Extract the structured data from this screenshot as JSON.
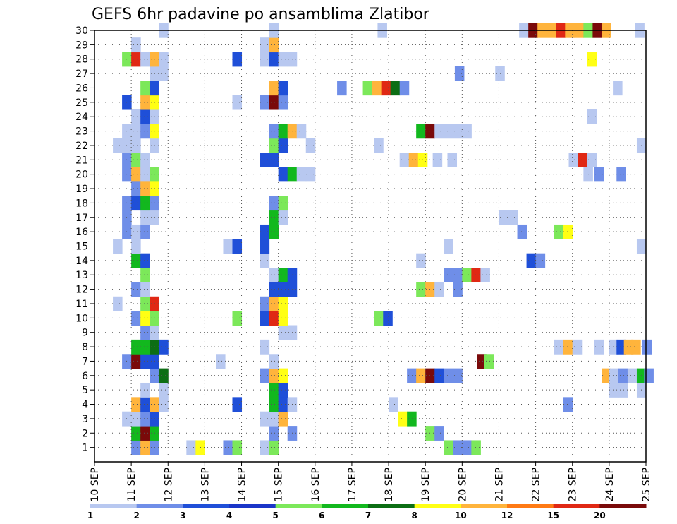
{
  "chart_data": {
    "type": "heatmap",
    "title": "GEFS 6hr padavine po ansamblima Zlatibor",
    "x_ticks": [
      "10 SEP",
      "11 SEP",
      "12 SEP",
      "13 SEP",
      "14 SEP",
      "15 SEP",
      "16 SEP",
      "17 SEP",
      "18 SEP",
      "19 SEP",
      "20 SEP",
      "21 SEP",
      "22 SEP",
      "23 SEP",
      "24 SEP",
      "25 SEP"
    ],
    "x_range_days": [
      10,
      25
    ],
    "y_ticks": [
      "1",
      "2",
      "3",
      "4",
      "5",
      "6",
      "7",
      "8",
      "9",
      "10",
      "11",
      "12",
      "13",
      "14",
      "15",
      "16",
      "17",
      "18",
      "19",
      "20",
      "21",
      "22",
      "23",
      "24",
      "25",
      "26",
      "27",
      "28",
      "29",
      "30"
    ],
    "y_range": [
      0,
      30
    ],
    "grid": true,
    "colorbar": {
      "labels": [
        "1",
        "2",
        "3",
        "4",
        "5",
        "6",
        "7",
        "8",
        "10",
        "12",
        "15",
        "20"
      ],
      "colors": [
        "#b8c8f0",
        "#6f8ee8",
        "#1f4fd8",
        "#1a35c8",
        "#7ce85a",
        "#12b81e",
        "#0c6e14",
        "#ffff14",
        "#ffb43c",
        "#ff7a14",
        "#e02814",
        "#7a0a0a"
      ],
      "units_note": ""
    },
    "cells": [
      [
        1,
        11.0,
        2
      ],
      [
        1,
        11.25,
        10
      ],
      [
        1,
        11.5,
        2
      ],
      [
        1,
        12.5,
        1
      ],
      [
        1,
        12.75,
        8
      ],
      [
        1,
        13.5,
        2
      ],
      [
        1,
        13.75,
        5
      ],
      [
        1,
        14.5,
        1
      ],
      [
        1,
        14.75,
        5
      ],
      [
        1,
        19.5,
        5
      ],
      [
        1,
        19.75,
        2
      ],
      [
        1,
        19.0,
        0
      ],
      [
        1,
        20.0,
        2
      ],
      [
        1,
        20.25,
        5
      ],
      [
        2,
        11.0,
        6
      ],
      [
        2,
        11.25,
        20
      ],
      [
        2,
        11.5,
        6
      ],
      [
        2,
        14.75,
        2
      ],
      [
        2,
        15.25,
        2
      ],
      [
        2,
        19.0,
        5
      ],
      [
        2,
        19.25,
        2
      ],
      [
        3,
        10.75,
        1
      ],
      [
        3,
        11.0,
        1
      ],
      [
        3,
        11.25,
        2
      ],
      [
        3,
        11.5,
        3
      ],
      [
        3,
        14.5,
        1
      ],
      [
        3,
        14.75,
        1
      ],
      [
        3,
        15.0,
        10
      ],
      [
        3,
        18.25,
        8
      ],
      [
        3,
        18.5,
        6
      ],
      [
        4,
        11.0,
        10
      ],
      [
        4,
        11.25,
        3
      ],
      [
        4,
        11.5,
        10
      ],
      [
        4,
        11.75,
        1
      ],
      [
        4,
        13.75,
        3
      ],
      [
        4,
        14.75,
        6
      ],
      [
        4,
        15.0,
        3
      ],
      [
        4,
        15.25,
        1
      ],
      [
        4,
        18.0,
        1
      ],
      [
        4,
        22.75,
        2
      ],
      [
        5,
        11.25,
        1
      ],
      [
        5,
        11.75,
        1
      ],
      [
        5,
        14.75,
        6
      ],
      [
        5,
        15.0,
        3
      ],
      [
        5,
        24.0,
        1
      ],
      [
        5,
        24.25,
        1
      ],
      [
        5,
        24.75,
        1
      ],
      [
        6,
        11.5,
        2
      ],
      [
        6,
        11.75,
        7
      ],
      [
        6,
        14.5,
        2
      ],
      [
        6,
        14.75,
        10
      ],
      [
        6,
        15.0,
        8
      ],
      [
        6,
        18.5,
        2
      ],
      [
        6,
        18.75,
        10
      ],
      [
        6,
        19.0,
        20
      ],
      [
        6,
        19.25,
        3
      ],
      [
        6,
        19.5,
        2
      ],
      [
        6,
        19.75,
        2
      ],
      [
        6,
        23.8,
        10
      ],
      [
        6,
        24.0,
        1
      ],
      [
        6,
        24.25,
        2
      ],
      [
        6,
        24.5,
        1
      ],
      [
        6,
        24.75,
        6
      ],
      [
        6,
        24.95,
        2
      ],
      [
        7,
        10.75,
        2
      ],
      [
        7,
        11.0,
        20
      ],
      [
        7,
        11.25,
        3
      ],
      [
        7,
        11.5,
        3
      ],
      [
        7,
        13.3,
        1
      ],
      [
        7,
        14.75,
        1
      ],
      [
        7,
        20.4,
        20
      ],
      [
        7,
        20.6,
        5
      ],
      [
        8,
        11.0,
        6
      ],
      [
        8,
        11.25,
        6
      ],
      [
        8,
        11.5,
        7
      ],
      [
        8,
        11.75,
        3
      ],
      [
        8,
        14.5,
        1
      ],
      [
        8,
        22.5,
        1
      ],
      [
        8,
        22.75,
        10
      ],
      [
        8,
        23.0,
        1
      ],
      [
        8,
        23.6,
        1
      ],
      [
        8,
        24.0,
        1
      ],
      [
        8,
        24.2,
        3
      ],
      [
        8,
        24.4,
        10
      ],
      [
        8,
        24.6,
        10
      ],
      [
        8,
        24.9,
        2
      ],
      [
        9,
        11.25,
        2
      ],
      [
        9,
        11.5,
        1
      ],
      [
        9,
        15.0,
        1
      ],
      [
        9,
        15.25,
        1
      ],
      [
        10,
        11.0,
        2
      ],
      [
        10,
        11.25,
        8
      ],
      [
        10,
        11.5,
        5
      ],
      [
        10,
        13.75,
        5
      ],
      [
        10,
        14.5,
        3
      ],
      [
        10,
        14.75,
        15
      ],
      [
        10,
        15.0,
        8
      ],
      [
        10,
        17.6,
        5
      ],
      [
        10,
        17.85,
        3
      ],
      [
        11,
        10.5,
        1
      ],
      [
        11,
        11.25,
        5
      ],
      [
        11,
        11.5,
        15
      ],
      [
        11,
        14.5,
        2
      ],
      [
        11,
        14.75,
        10
      ],
      [
        11,
        15.0,
        8
      ],
      [
        12,
        11.0,
        2
      ],
      [
        12,
        11.25,
        1
      ],
      [
        12,
        14.75,
        3
      ],
      [
        12,
        15.0,
        3
      ],
      [
        12,
        15.25,
        3
      ],
      [
        12,
        18.75,
        5
      ],
      [
        12,
        19.0,
        10
      ],
      [
        12,
        19.25,
        1
      ],
      [
        12,
        19.75,
        2
      ],
      [
        13,
        11.25,
        5
      ],
      [
        13,
        14.75,
        1
      ],
      [
        13,
        15.0,
        6
      ],
      [
        13,
        15.25,
        3
      ],
      [
        13,
        19.5,
        2
      ],
      [
        13,
        19.75,
        2
      ],
      [
        13,
        20.0,
        5
      ],
      [
        13,
        20.25,
        15
      ],
      [
        13,
        20.5,
        1
      ],
      [
        14,
        11.0,
        6
      ],
      [
        14,
        11.25,
        3
      ],
      [
        14,
        14.5,
        1
      ],
      [
        14,
        18.75,
        1
      ],
      [
        14,
        21.75,
        3
      ],
      [
        14,
        22.0,
        2
      ],
      [
        15,
        10.5,
        1
      ],
      [
        15,
        11.0,
        1
      ],
      [
        15,
        13.5,
        1
      ],
      [
        15,
        13.75,
        3
      ],
      [
        15,
        14.5,
        3
      ],
      [
        15,
        19.5,
        1
      ],
      [
        15,
        24.75,
        1
      ],
      [
        16,
        10.75,
        2
      ],
      [
        16,
        11.0,
        1
      ],
      [
        16,
        11.25,
        2
      ],
      [
        16,
        14.5,
        3
      ],
      [
        16,
        14.75,
        6
      ],
      [
        16,
        21.5,
        2
      ],
      [
        16,
        22.5,
        5
      ],
      [
        16,
        22.75,
        8
      ],
      [
        17,
        10.75,
        2
      ],
      [
        17,
        11.25,
        1
      ],
      [
        17,
        11.5,
        1
      ],
      [
        17,
        14.75,
        6
      ],
      [
        17,
        15.0,
        1
      ],
      [
        17,
        21.0,
        1
      ],
      [
        17,
        21.25,
        1
      ],
      [
        18,
        10.75,
        2
      ],
      [
        18,
        11.0,
        3
      ],
      [
        18,
        11.25,
        6
      ],
      [
        18,
        11.5,
        2
      ],
      [
        18,
        14.75,
        2
      ],
      [
        18,
        15.0,
        5
      ],
      [
        19,
        11.0,
        2
      ],
      [
        19,
        11.25,
        10
      ],
      [
        19,
        11.5,
        8
      ],
      [
        20,
        10.75,
        2
      ],
      [
        20,
        11.0,
        10
      ],
      [
        20,
        11.25,
        1
      ],
      [
        20,
        11.5,
        5
      ],
      [
        20,
        15.0,
        3
      ],
      [
        20,
        15.25,
        6
      ],
      [
        20,
        15.5,
        1
      ],
      [
        20,
        15.75,
        1
      ],
      [
        20,
        23.3,
        1
      ],
      [
        20,
        23.6,
        2
      ],
      [
        20,
        24.2,
        2
      ],
      [
        21,
        10.75,
        2
      ],
      [
        21,
        11.0,
        5
      ],
      [
        21,
        11.25,
        1
      ],
      [
        21,
        14.5,
        3
      ],
      [
        21,
        14.75,
        3
      ],
      [
        21,
        18.3,
        1
      ],
      [
        21,
        18.55,
        10
      ],
      [
        21,
        18.8,
        8
      ],
      [
        21,
        19.2,
        1
      ],
      [
        21,
        19.6,
        1
      ],
      [
        21,
        22.9,
        1
      ],
      [
        21,
        23.15,
        15
      ],
      [
        21,
        23.4,
        1
      ],
      [
        22,
        10.5,
        1
      ],
      [
        22,
        10.75,
        1
      ],
      [
        22,
        11.0,
        1
      ],
      [
        22,
        11.5,
        1
      ],
      [
        22,
        14.75,
        5
      ],
      [
        22,
        15.0,
        3
      ],
      [
        22,
        15.75,
        1
      ],
      [
        22,
        17.6,
        1
      ],
      [
        22,
        24.75,
        1
      ],
      [
        23,
        10.75,
        1
      ],
      [
        23,
        11.0,
        1
      ],
      [
        23,
        11.25,
        2
      ],
      [
        23,
        11.5,
        8
      ],
      [
        23,
        14.75,
        2
      ],
      [
        23,
        15.0,
        6
      ],
      [
        23,
        15.25,
        10
      ],
      [
        23,
        15.5,
        1
      ],
      [
        23,
        18.75,
        6
      ],
      [
        23,
        19.0,
        20
      ],
      [
        23,
        19.25,
        1
      ],
      [
        23,
        19.5,
        1
      ],
      [
        23,
        19.75,
        1
      ],
      [
        23,
        20.0,
        1
      ],
      [
        24,
        11.0,
        1
      ],
      [
        24,
        11.25,
        3
      ],
      [
        24,
        11.5,
        1
      ],
      [
        24,
        23.4,
        1
      ],
      [
        25,
        10.75,
        3
      ],
      [
        25,
        11.25,
        10
      ],
      [
        25,
        11.5,
        8
      ],
      [
        25,
        13.75,
        1
      ],
      [
        25,
        14.5,
        2
      ],
      [
        25,
        14.75,
        20
      ],
      [
        25,
        15.0,
        2
      ],
      [
        26,
        11.25,
        5
      ],
      [
        26,
        11.5,
        3
      ],
      [
        26,
        14.75,
        10
      ],
      [
        26,
        15.0,
        3
      ],
      [
        26,
        16.6,
        2
      ],
      [
        26,
        17.3,
        5
      ],
      [
        26,
        17.55,
        10
      ],
      [
        26,
        17.8,
        15
      ],
      [
        26,
        18.05,
        7
      ],
      [
        26,
        18.3,
        2
      ],
      [
        26,
        24.1,
        1
      ],
      [
        27,
        11.5,
        1
      ],
      [
        27,
        11.75,
        1
      ],
      [
        27,
        19.8,
        2
      ],
      [
        27,
        20.9,
        1
      ],
      [
        28,
        10.75,
        5
      ],
      [
        28,
        11.0,
        15
      ],
      [
        28,
        11.25,
        1
      ],
      [
        28,
        11.5,
        10
      ],
      [
        28,
        11.75,
        1
      ],
      [
        28,
        13.75,
        3
      ],
      [
        28,
        14.5,
        1
      ],
      [
        28,
        14.75,
        3
      ],
      [
        28,
        15.0,
        1
      ],
      [
        28,
        15.25,
        1
      ],
      [
        28,
        23.4,
        8
      ],
      [
        29,
        11.0,
        1
      ],
      [
        29,
        14.5,
        1
      ],
      [
        29,
        14.75,
        10
      ],
      [
        30,
        11.75,
        1
      ],
      [
        30,
        14.75,
        1
      ],
      [
        30,
        17.7,
        1
      ],
      [
        30,
        21.55,
        1
      ],
      [
        30,
        21.8,
        20
      ],
      [
        30,
        22.05,
        10
      ],
      [
        30,
        22.3,
        10
      ],
      [
        30,
        22.55,
        15
      ],
      [
        30,
        22.8,
        10
      ],
      [
        30,
        23.05,
        10
      ],
      [
        30,
        23.3,
        5
      ],
      [
        30,
        23.55,
        20
      ],
      [
        30,
        23.8,
        10
      ],
      [
        30,
        24.7,
        1
      ]
    ]
  }
}
